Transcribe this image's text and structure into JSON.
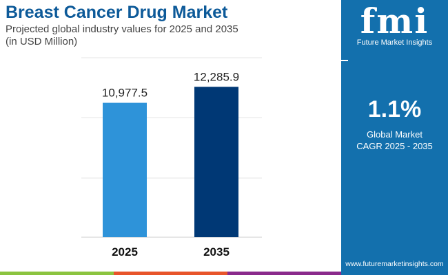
{
  "header": {
    "title": "Breast Cancer Drug Market",
    "subtitle": "Projected global industry values for 2025 and 2035",
    "unit": "(in USD Million)"
  },
  "sidebar": {
    "brand": "fmi",
    "brand_name": "Future Market Insights",
    "cagr_value": "1.1%",
    "cagr_label_1": "Global Market",
    "cagr_label_2": "CAGR 2025 - 2035",
    "url": "www.futuremarketinsights.com",
    "color": "#1370ad"
  },
  "chart_data": {
    "type": "bar",
    "categories": [
      "2025",
      "2035"
    ],
    "values": [
      10977.5,
      12285.9
    ],
    "value_labels": [
      "10,977.5",
      "12,285.9"
    ],
    "colors": [
      "#2e93d9",
      "#003875"
    ],
    "ylim": [
      0,
      14000
    ],
    "grid": true,
    "xlabel": "",
    "ylabel": "",
    "title": "Breast Cancer Drug Market"
  },
  "footer_colors": [
    "#8bc43f",
    "#e8542a",
    "#8a2a8c"
  ]
}
